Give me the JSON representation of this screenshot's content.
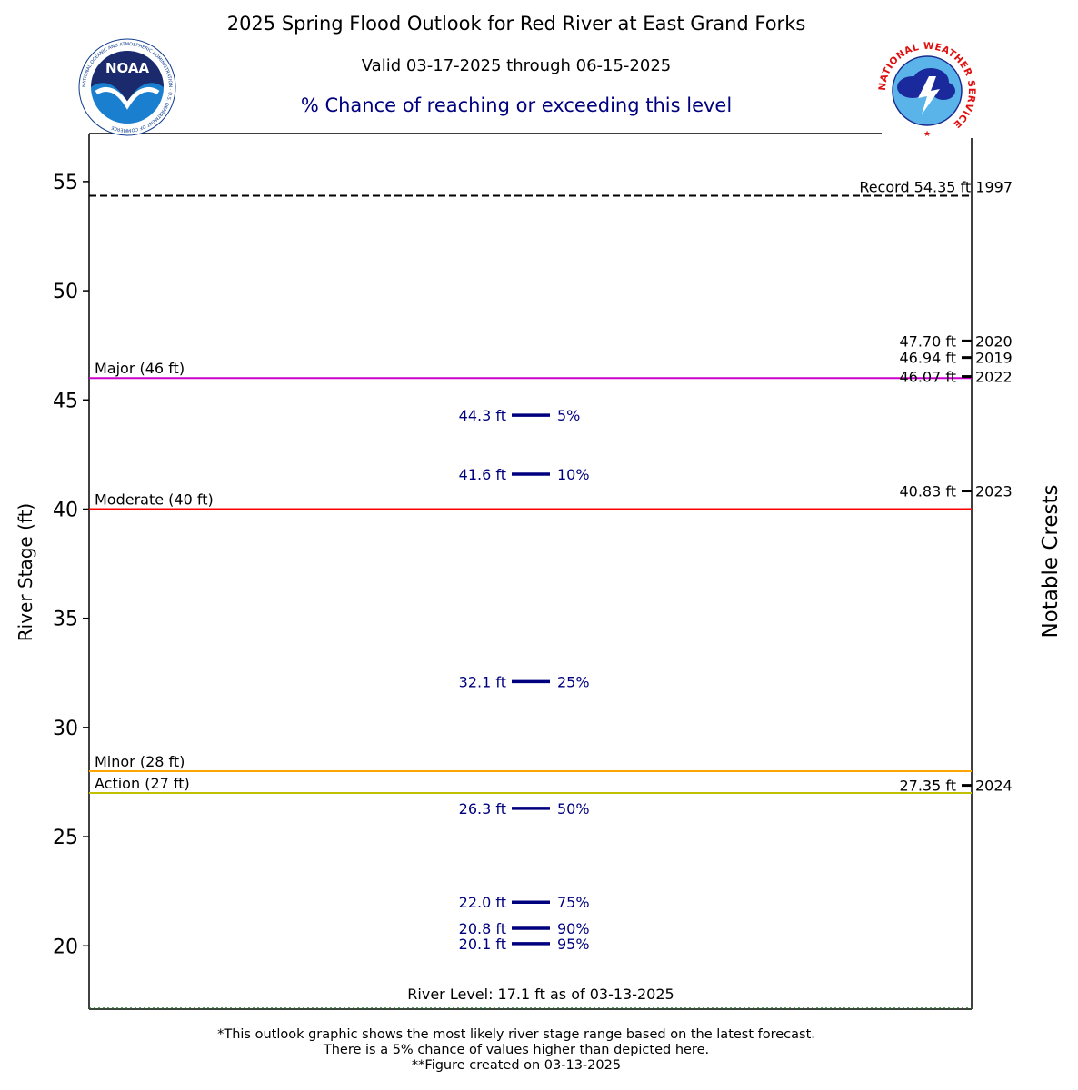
{
  "header": {
    "title": "2025 Spring Flood Outlook for Red River at East Grand Forks",
    "valid": "Valid 03-17-2025 through 06-15-2025",
    "subtitle": "% Chance of reaching or exceeding this level"
  },
  "logos": {
    "left_label": "NOAA",
    "left_ring_text": "NATIONAL OCEANIC AND ATMOSPHERIC ADMINISTRATION · U.S. DEPARTMENT OF COMMERCE",
    "right_ring_text": "NATIONAL WEATHER SERVICE"
  },
  "chart_data": {
    "type": "line",
    "ylabel": "River Stage (ft)",
    "y2label": "Notable Crests",
    "ylim": [
      17.1,
      57.2
    ],
    "yticks": [
      20,
      25,
      30,
      35,
      40,
      45,
      50,
      55
    ],
    "record": {
      "label": "Record 54.35 ft  1997",
      "value": 54.35,
      "color": "#000000"
    },
    "thresholds": [
      {
        "name": "Major (46 ft)",
        "value": 46,
        "color": "#cc00cc"
      },
      {
        "name": "Moderate (40 ft)",
        "value": 40,
        "color": "#ff0000"
      },
      {
        "name": "Minor (28 ft)",
        "value": 28,
        "color": "#ffa500"
      },
      {
        "name": "Action (27 ft)",
        "value": 27,
        "color": "#c0c000"
      }
    ],
    "exceedance": [
      {
        "value": 44.3,
        "label": "44.3 ft",
        "chance": "5%"
      },
      {
        "value": 41.6,
        "label": "41.6 ft",
        "chance": "10%"
      },
      {
        "value": 32.1,
        "label": "32.1 ft",
        "chance": "25%"
      },
      {
        "value": 26.3,
        "label": "26.3 ft",
        "chance": "50%"
      },
      {
        "value": 22.0,
        "label": "22.0 ft",
        "chance": "75%"
      },
      {
        "value": 20.8,
        "label": "20.8 ft",
        "chance": "90%"
      },
      {
        "value": 20.1,
        "label": "20.1 ft",
        "chance": "95%"
      }
    ],
    "crests": [
      {
        "value": 47.7,
        "label": "47.70 ft",
        "year": "2020"
      },
      {
        "value": 46.94,
        "label": "46.94 ft",
        "year": "2019"
      },
      {
        "value": 46.07,
        "label": "46.07 ft",
        "year": "2022"
      },
      {
        "value": 40.83,
        "label": "40.83 ft",
        "year": "2023"
      },
      {
        "value": 27.35,
        "label": "27.35 ft",
        "year": "2024"
      }
    ],
    "current_level": {
      "value": 17.1,
      "label": "River Level: 17.1 ft as of 03-13-2025"
    },
    "colors": {
      "exceedance": "#00007f",
      "text": "#000000"
    }
  },
  "footnotes": [
    "*This outlook graphic shows the most likely river stage range based on the latest forecast.",
    "There is a 5% chance of values higher than depicted here.",
    "**Figure created on 03-13-2025"
  ]
}
